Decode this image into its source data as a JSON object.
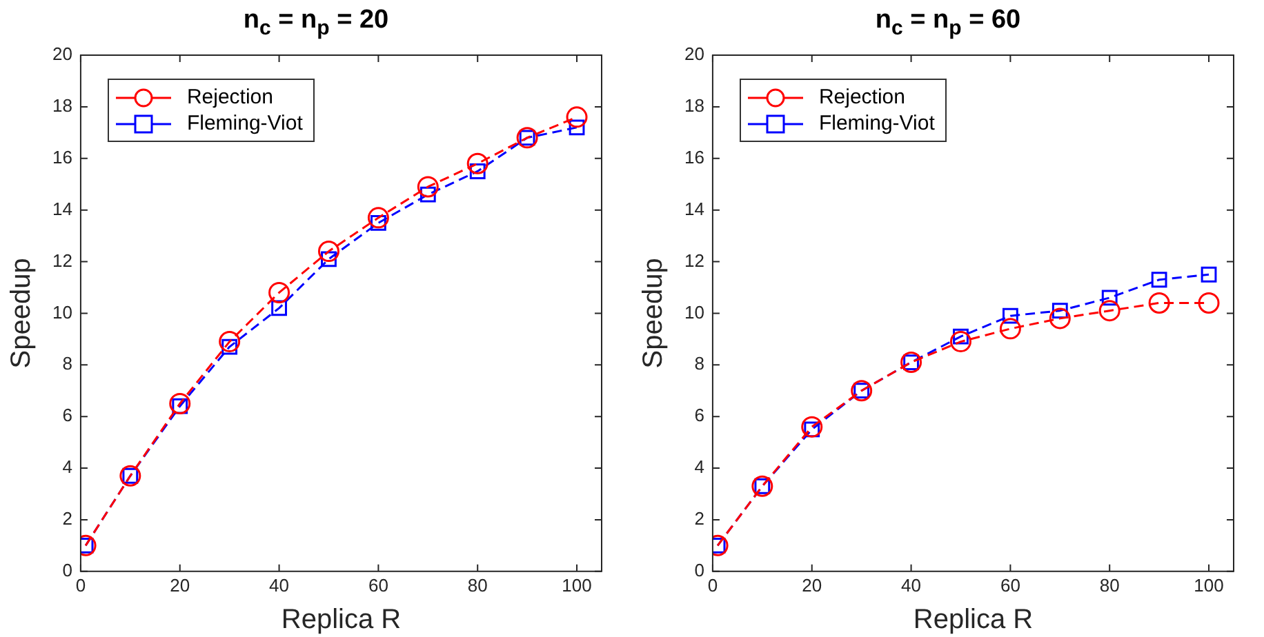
{
  "chart_data": [
    {
      "type": "line",
      "title": "n$_{c}$ = n$_{p}$ = 20",
      "xlabel": "Replica R",
      "ylabel": "Speedup",
      "x": [
        1,
        10,
        20,
        30,
        40,
        50,
        60,
        70,
        80,
        90,
        100
      ],
      "xlim": [
        0,
        105
      ],
      "xticks": [
        0,
        20,
        40,
        60,
        80,
        100
      ],
      "ylim": [
        0,
        20
      ],
      "yticks": [
        0,
        2,
        4,
        6,
        8,
        10,
        12,
        14,
        16,
        18,
        20
      ],
      "legend": "top left",
      "line_style": "dashed",
      "series": [
        {
          "name": "Rejection",
          "color": "#ff0000",
          "marker": "circle",
          "values": [
            1,
            3.7,
            6.5,
            8.9,
            10.8,
            12.4,
            13.7,
            14.9,
            15.8,
            16.8,
            17.6
          ]
        },
        {
          "name": "Fleming-Viot",
          "color": "#0000ff",
          "marker": "square",
          "values": [
            1,
            3.7,
            6.4,
            8.7,
            10.2,
            12.1,
            13.5,
            14.6,
            15.5,
            16.8,
            17.2
          ]
        }
      ]
    },
    {
      "type": "line",
      "title": "n$_{c}$ = n$_{p}$ = 60",
      "xlabel": "Replica R",
      "ylabel": "Speedup",
      "x": [
        1,
        10,
        20,
        30,
        40,
        50,
        60,
        70,
        80,
        90,
        100
      ],
      "xlim": [
        0,
        105
      ],
      "xticks": [
        0,
        20,
        40,
        60,
        80,
        100
      ],
      "ylim": [
        0,
        20
      ],
      "yticks": [
        0,
        2,
        4,
        6,
        8,
        10,
        12,
        14,
        16,
        18,
        20
      ],
      "legend": "top left",
      "line_style": "dashed",
      "series": [
        {
          "name": "Rejection",
          "color": "#ff0000",
          "marker": "circle",
          "values": [
            1,
            3.3,
            5.6,
            7.0,
            8.1,
            8.9,
            9.4,
            9.8,
            10.1,
            10.4,
            10.4
          ]
        },
        {
          "name": "Fleming-Viot",
          "color": "#0000ff",
          "marker": "square",
          "values": [
            1,
            3.3,
            5.5,
            7.0,
            8.1,
            9.1,
            9.9,
            10.1,
            10.6,
            11.3,
            11.5
          ]
        }
      ]
    }
  ]
}
